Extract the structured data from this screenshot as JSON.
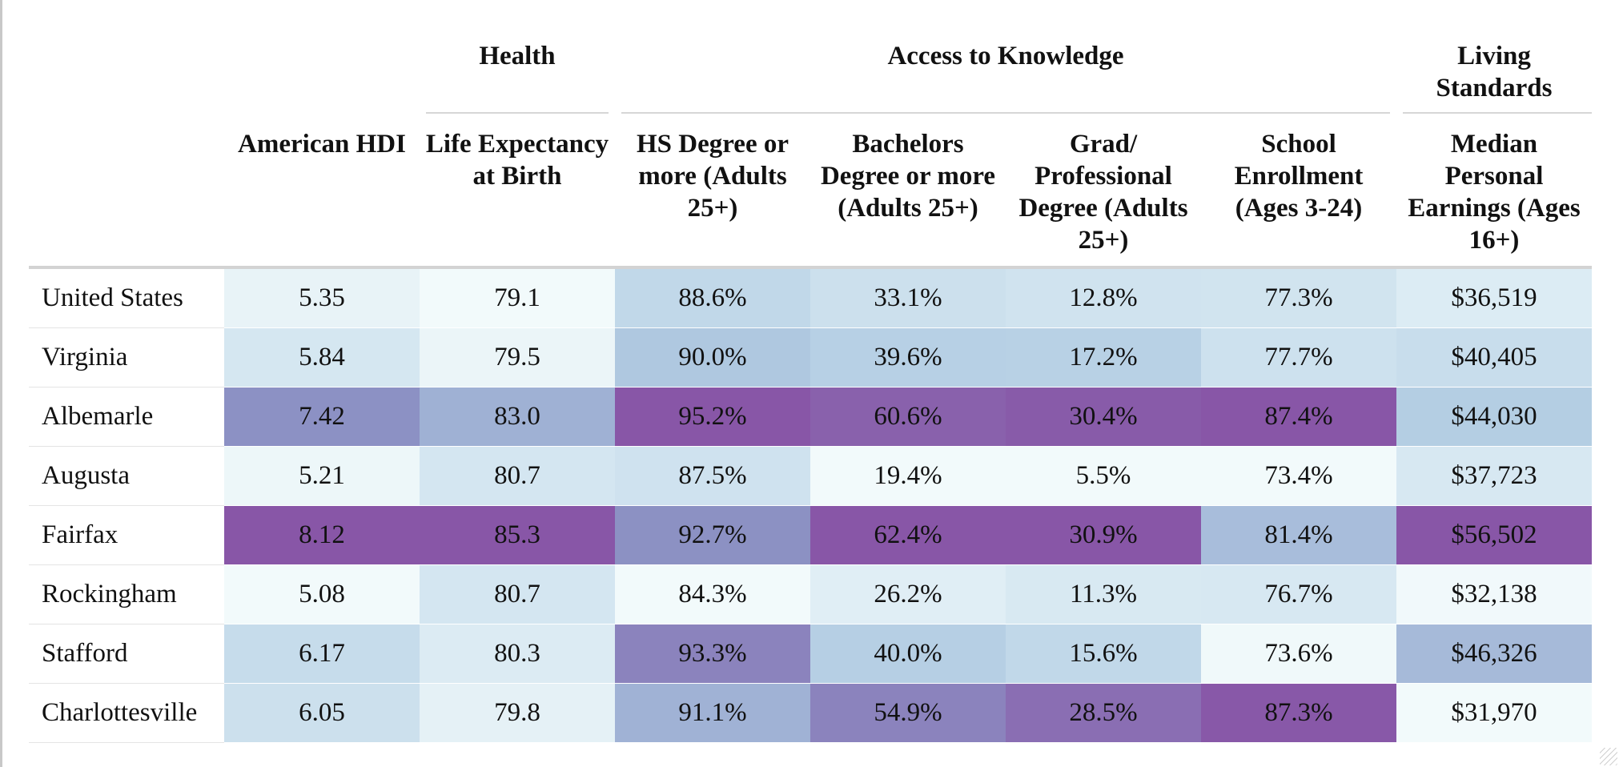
{
  "chart_data": {
    "type": "table",
    "column_groups": [
      {
        "label": "",
        "span": 1
      },
      {
        "label": "",
        "span": 1
      },
      {
        "label": "Health",
        "span": 1
      },
      {
        "label": "Access to Knowledge",
        "span": 4
      },
      {
        "label": "Living Standards",
        "span": 1
      }
    ],
    "columns": [
      "",
      "American HDI",
      "Life Expectancy at Birth",
      "HS Degree or more (Adults 25+)",
      "Bachelors Degree or more (Adults 25+)",
      "Grad/ Professional Degree (Adults 25+)",
      "School Enrollment (Ages 3-24)",
      "Median Personal Earnings (Ages 16+)"
    ],
    "rows": [
      {
        "label": "United States",
        "cells": [
          "5.35",
          "79.1",
          "88.6%",
          "33.1%",
          "12.8%",
          "77.3%",
          "$36,519"
        ]
      },
      {
        "label": "Virginia",
        "cells": [
          "5.84",
          "79.5",
          "90.0%",
          "39.6%",
          "17.2%",
          "77.7%",
          "$40,405"
        ]
      },
      {
        "label": "Albemarle",
        "cells": [
          "7.42",
          "83.0",
          "95.2%",
          "60.6%",
          "30.4%",
          "87.4%",
          "$44,030"
        ]
      },
      {
        "label": "Augusta",
        "cells": [
          "5.21",
          "80.7",
          "87.5%",
          "19.4%",
          "5.5%",
          "73.4%",
          "$37,723"
        ]
      },
      {
        "label": "Fairfax",
        "cells": [
          "8.12",
          "85.3",
          "92.7%",
          "62.4%",
          "30.9%",
          "81.4%",
          "$56,502"
        ]
      },
      {
        "label": "Rockingham",
        "cells": [
          "5.08",
          "80.7",
          "84.3%",
          "26.2%",
          "11.3%",
          "76.7%",
          "$32,138"
        ]
      },
      {
        "label": "Stafford",
        "cells": [
          "6.17",
          "80.3",
          "93.3%",
          "40.0%",
          "15.6%",
          "73.6%",
          "$46,326"
        ]
      },
      {
        "label": "Charlottesville",
        "cells": [
          "6.05",
          "79.8",
          "91.1%",
          "54.9%",
          "28.5%",
          "87.3%",
          "$31,970"
        ]
      }
    ],
    "color_scale": [
      "#f2fafb",
      "#d5e7f1",
      "#b3cde3",
      "#8c96c6",
      "#8856a7"
    ]
  }
}
